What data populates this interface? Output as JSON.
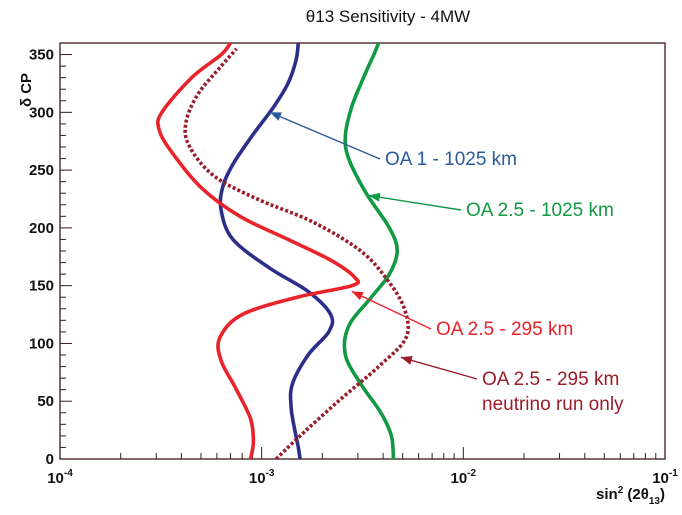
{
  "chart_data": {
    "type": "line",
    "title": "θ13 Sensitivity - 4MW",
    "xlabel": {
      "main": "sin",
      "sup": "2",
      "paren_open": " (2θ",
      "sub": "13",
      "paren_close": ")"
    },
    "ylabel": "δ CP",
    "xscale": "log",
    "xlim": [
      0.0001,
      0.1
    ],
    "ylim": [
      0,
      360
    ],
    "x_ticks": [
      {
        "value": 0.0001,
        "base": "10",
        "exp": "-4"
      },
      {
        "value": 0.001,
        "base": "10",
        "exp": "-3"
      },
      {
        "value": 0.01,
        "base": "10",
        "exp": "-2"
      },
      {
        "value": 0.1,
        "base": "10",
        "exp": "-1"
      }
    ],
    "y_ticks": [
      "0",
      "50",
      "100",
      "150",
      "200",
      "250",
      "300",
      "350"
    ],
    "series": [
      {
        "name": "OA 1 - 1025 km",
        "color": "#2b2f8a",
        "dash": "solid",
        "points": [
          [
            0.00155,
            0
          ],
          [
            0.00152,
            10
          ],
          [
            0.00146,
            25
          ],
          [
            0.0014,
            45
          ],
          [
            0.00142,
            65
          ],
          [
            0.0017,
            90
          ],
          [
            0.00215,
            110
          ],
          [
            0.0022,
            125
          ],
          [
            0.0017,
            145
          ],
          [
            0.0011,
            165
          ],
          [
            0.00072,
            190
          ],
          [
            0.00063,
            215
          ],
          [
            0.00064,
            235
          ],
          [
            0.00072,
            255
          ],
          [
            0.0009,
            280
          ],
          [
            0.00115,
            305
          ],
          [
            0.00135,
            325
          ],
          [
            0.00148,
            345
          ],
          [
            0.00152,
            360
          ]
        ]
      },
      {
        "name": "OA 2.5 - 1025 km",
        "color": "#119944",
        "dash": "solid",
        "points": [
          [
            0.0045,
            0
          ],
          [
            0.0044,
            20
          ],
          [
            0.0039,
            40
          ],
          [
            0.0031,
            65
          ],
          [
            0.0026,
            90
          ],
          [
            0.0027,
            115
          ],
          [
            0.0035,
            140
          ],
          [
            0.0043,
            160
          ],
          [
            0.0047,
            180
          ],
          [
            0.0043,
            200
          ],
          [
            0.0033,
            230
          ],
          [
            0.0027,
            260
          ],
          [
            0.0026,
            280
          ],
          [
            0.0028,
            305
          ],
          [
            0.0032,
            330
          ],
          [
            0.0036,
            350
          ],
          [
            0.0038,
            360
          ]
        ]
      },
      {
        "name": "OA 2.5 - 295 km",
        "color": "#e8232a",
        "dash": "solid",
        "points": [
          [
            0.00088,
            0
          ],
          [
            0.00091,
            15
          ],
          [
            0.00088,
            35
          ],
          [
            0.00075,
            60
          ],
          [
            0.00063,
            85
          ],
          [
            0.00062,
            105
          ],
          [
            0.0008,
            125
          ],
          [
            0.0015,
            140
          ],
          [
            0.0028,
            150
          ],
          [
            0.0029,
            157
          ],
          [
            0.0022,
            172
          ],
          [
            0.00135,
            190
          ],
          [
            0.00078,
            210
          ],
          [
            0.0005,
            235
          ],
          [
            0.00036,
            265
          ],
          [
            0.00031,
            285
          ],
          [
            0.00032,
            300
          ],
          [
            0.00045,
            330
          ],
          [
            0.00063,
            350
          ],
          [
            0.0007,
            360
          ]
        ]
      },
      {
        "name": "OA 2.5 - 295 km neutrino run only",
        "color": "#9b1c2a",
        "dash": "dotted",
        "points": [
          [
            0.00118,
            0
          ],
          [
            0.00155,
            20
          ],
          [
            0.0024,
            50
          ],
          [
            0.0038,
            80
          ],
          [
            0.0052,
            105
          ],
          [
            0.0051,
            130
          ],
          [
            0.0042,
            155
          ],
          [
            0.0031,
            180
          ],
          [
            0.0018,
            205
          ],
          [
            0.00095,
            225
          ],
          [
            0.00058,
            245
          ],
          [
            0.00044,
            270
          ],
          [
            0.00042,
            290
          ],
          [
            0.00048,
            315
          ],
          [
            0.00063,
            340
          ],
          [
            0.00075,
            355
          ]
        ]
      }
    ],
    "annotations": [
      {
        "text": "OA 1 - 1025 km",
        "color": "#2b5a9c",
        "target": [
          0.0011,
          300
        ]
      },
      {
        "text": "OA 2.5 - 1025 km",
        "color": "#119944",
        "target": [
          0.0034,
          228
        ]
      },
      {
        "text": "OA 2.5 - 295 km",
        "color": "#e8232a",
        "target": [
          0.0028,
          145
        ]
      },
      {
        "text": "OA 2.5 - 295 km",
        "text2": "neutrino run only",
        "color": "#9b1c2a",
        "target": [
          0.0049,
          88
        ]
      }
    ],
    "grid": false,
    "legend": "none"
  }
}
